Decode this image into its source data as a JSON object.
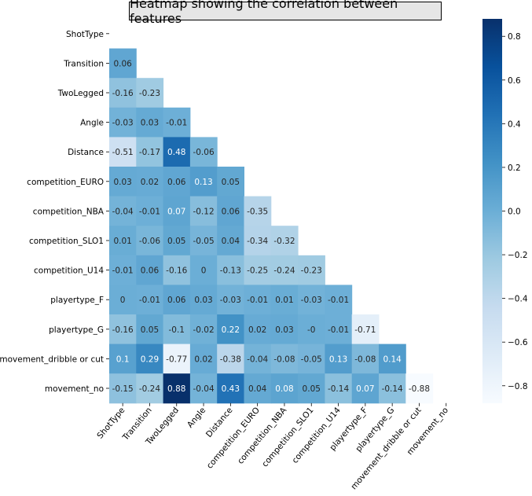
{
  "chart_data": {
    "type": "heatmap",
    "title": "Heatmap showing the correlation between features",
    "xlabel": "",
    "ylabel": "",
    "labels": [
      "ShotType",
      "Transition",
      "TwoLegged",
      "Angle",
      "Distance",
      "competition_EURO",
      "competition_NBA",
      "competition_SLO1",
      "competition_U14",
      "playertype_F",
      "playertype_G",
      "movement_dribble or cut",
      "movement_no"
    ],
    "mask": "upper-triangle-and-diagonal",
    "matrix": [
      [],
      [
        "0.06"
      ],
      [
        "-0.16",
        "-0.23"
      ],
      [
        "-0.03",
        "0.03",
        "-0.01"
      ],
      [
        "-0.51",
        "-0.17",
        "0.48",
        "-0.06"
      ],
      [
        "0.03",
        "0.02",
        "0.06",
        "0.13",
        "0.05"
      ],
      [
        "-0.04",
        "-0.01",
        "0.07",
        "-0.12",
        "0.06",
        "-0.35"
      ],
      [
        "0.01",
        "-0.06",
        "0.05",
        "-0.05",
        "0.04",
        "-0.34",
        "-0.32"
      ],
      [
        "-0.01",
        "0.06",
        "-0.16",
        "0",
        "-0.13",
        "-0.25",
        "-0.24",
        "-0.23"
      ],
      [
        "0",
        "-0.01",
        "0.06",
        "0.03",
        "-0.03",
        "-0.01",
        "0.01",
        "-0.03",
        "-0.01"
      ],
      [
        "-0.16",
        "0.05",
        "-0.1",
        "-0.02",
        "0.22",
        "0.02",
        "0.03",
        "-0",
        "-0.01",
        "-0.71"
      ],
      [
        "0.1",
        "0.29",
        "-0.77",
        "0.02",
        "-0.38",
        "-0.04",
        "-0.08",
        "-0.05",
        "0.13",
        "-0.08",
        "0.14"
      ],
      [
        "-0.15",
        "-0.24",
        "0.88",
        "-0.04",
        "0.43",
        "0.04",
        "0.08",
        "0.05",
        "-0.14",
        "0.07",
        "-0.14",
        "-0.88"
      ]
    ],
    "colorbar": {
      "min": -0.88,
      "max": 0.88,
      "ticks": [
        "0.8",
        "0.6",
        "0.4",
        "0.2",
        "0.0",
        "−0.2",
        "−0.4",
        "−0.6",
        "−0.8"
      ],
      "colormap": "Blues",
      "low_color": "#f7fbff",
      "high_color": "#08306b"
    },
    "grid": false,
    "legend": "colorbar-right"
  }
}
